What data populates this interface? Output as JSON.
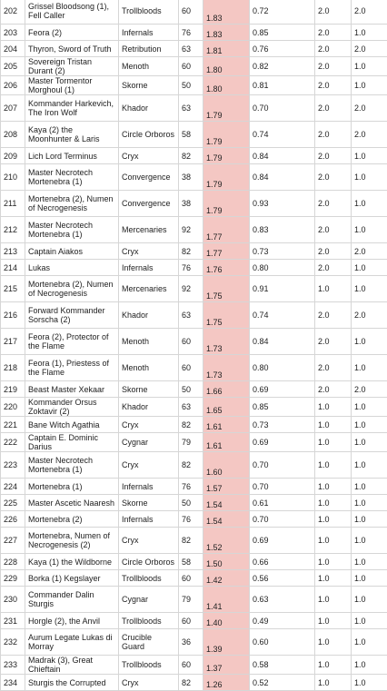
{
  "table": {
    "rows": [
      [
        "202",
        "Grissel Bloodsong (1), Fell Caller",
        "Trollbloods",
        "60",
        "1.83",
        "0.72",
        "2.0",
        "2.0"
      ],
      [
        "203",
        "Feora (2)",
        "Infernals",
        "76",
        "1.83",
        "0.85",
        "2.0",
        "1.0"
      ],
      [
        "204",
        "Thyron, Sword of Truth",
        "Retribution",
        "63",
        "1.81",
        "0.76",
        "2.0",
        "2.0"
      ],
      [
        "205",
        "Sovereign Tristan Durant (2)",
        "Menoth",
        "60",
        "1.80",
        "0.82",
        "2.0",
        "1.0"
      ],
      [
        "206",
        "Master Tormentor Morghoul (1)",
        "Skorne",
        "50",
        "1.80",
        "0.81",
        "2.0",
        "1.0"
      ],
      [
        "207",
        "Kommander Harkevich, The Iron Wolf",
        "Khador",
        "63",
        "1.79",
        "0.70",
        "2.0",
        "2.0"
      ],
      [
        "208",
        "Kaya (2) the Moonhunter & Laris",
        "Circle Orboros",
        "58",
        "1.79",
        "0.74",
        "2.0",
        "2.0"
      ],
      [
        "209",
        "Lich Lord Terminus",
        "Cryx",
        "82",
        "1.79",
        "0.84",
        "2.0",
        "1.0"
      ],
      [
        "210",
        "Master Necrotech Mortenebra (1)",
        "Convergence",
        "38",
        "1.79",
        "0.84",
        "2.0",
        "1.0"
      ],
      [
        "211",
        "Mortenebra (2), Numen of Necrogenesis",
        "Convergence",
        "38",
        "1.79",
        "0.93",
        "2.0",
        "1.0"
      ],
      [
        "212",
        "Master Necrotech Mortenebra (1)",
        "Mercenaries",
        "92",
        "1.77",
        "0.83",
        "2.0",
        "1.0"
      ],
      [
        "213",
        "Captain Aiakos",
        "Cryx",
        "82",
        "1.77",
        "0.73",
        "2.0",
        "2.0"
      ],
      [
        "214",
        "Lukas",
        "Infernals",
        "76",
        "1.76",
        "0.80",
        "2.0",
        "1.0"
      ],
      [
        "215",
        "Mortenebra (2), Numen of Necrogenesis",
        "Mercenaries",
        "92",
        "1.75",
        "0.91",
        "1.0",
        "1.0"
      ],
      [
        "216",
        "Forward Kommander Sorscha (2)",
        "Khador",
        "63",
        "1.75",
        "0.74",
        "2.0",
        "2.0"
      ],
      [
        "217",
        "Feora (2), Protector of the Flame",
        "Menoth",
        "60",
        "1.73",
        "0.84",
        "2.0",
        "1.0"
      ],
      [
        "218",
        "Feora (1), Priestess of the Flame",
        "Menoth",
        "60",
        "1.73",
        "0.80",
        "2.0",
        "1.0"
      ],
      [
        "219",
        "Beast Master Xekaar",
        "Skorne",
        "50",
        "1.66",
        "0.69",
        "2.0",
        "2.0"
      ],
      [
        "220",
        "Kommander Orsus Zoktavir (2)",
        "Khador",
        "63",
        "1.65",
        "0.85",
        "1.0",
        "1.0"
      ],
      [
        "221",
        "Bane Witch Agathia",
        "Cryx",
        "82",
        "1.61",
        "0.73",
        "1.0",
        "1.0"
      ],
      [
        "222",
        "Captain E. Dominic Darius",
        "Cygnar",
        "79",
        "1.61",
        "0.69",
        "1.0",
        "1.0"
      ],
      [
        "223",
        "Master Necrotech Mortenebra (1)",
        "Cryx",
        "82",
        "1.60",
        "0.70",
        "1.0",
        "1.0"
      ],
      [
        "224",
        "Mortenebra (1)",
        "Infernals",
        "76",
        "1.57",
        "0.70",
        "1.0",
        "1.0"
      ],
      [
        "225",
        "Master Ascetic Naaresh",
        "Skorne",
        "50",
        "1.54",
        "0.61",
        "1.0",
        "1.0"
      ],
      [
        "226",
        "Mortenebra (2)",
        "Infernals",
        "76",
        "1.54",
        "0.70",
        "1.0",
        "1.0"
      ],
      [
        "227",
        "Mortenebra, Numen of Necrogenesis (2)",
        "Cryx",
        "82",
        "1.52",
        "0.69",
        "1.0",
        "1.0"
      ],
      [
        "228",
        "Kaya (1) the Wildborne",
        "Circle Orboros",
        "58",
        "1.50",
        "0.66",
        "1.0",
        "1.0"
      ],
      [
        "229",
        "Borka (1) Kegslayer",
        "Trollbloods",
        "60",
        "1.42",
        "0.56",
        "1.0",
        "1.0"
      ],
      [
        "230",
        "Commander Dalin Sturgis",
        "Cygnar",
        "79",
        "1.41",
        "0.63",
        "1.0",
        "1.0"
      ],
      [
        "231",
        "Horgle (2), the Anvil",
        "Trollbloods",
        "60",
        "1.40",
        "0.49",
        "1.0",
        "1.0"
      ],
      [
        "232",
        "Aurum Legate Lukas di Morray",
        "Crucible Guard",
        "36",
        "1.39",
        "0.60",
        "1.0",
        "1.0"
      ],
      [
        "233",
        "Madrak (3), Great Chieftain",
        "Trollbloods",
        "60",
        "1.37",
        "0.58",
        "1.0",
        "1.0"
      ],
      [
        "234",
        "Sturgis the Corrupted",
        "Cryx",
        "82",
        "1.26",
        "0.52",
        "1.0",
        "1.0"
      ]
    ]
  }
}
